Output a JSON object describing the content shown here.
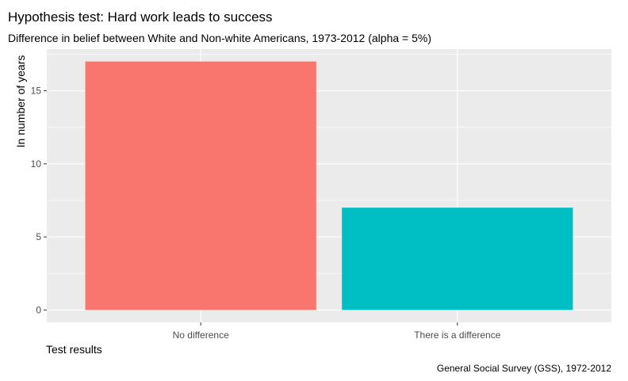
{
  "chart_data": {
    "type": "bar",
    "title": "Hypothesis test: Hard work leads to success",
    "subtitle": "Difference in belief between White and Non-white Americans, 1973-2012 (alpha = 5%)",
    "xlabel": "Test results",
    "ylabel": "In number of years",
    "caption": "General Social Survey (GSS), 1972-2012",
    "categories": [
      "No difference",
      "There is a difference"
    ],
    "values": [
      17,
      7
    ],
    "colors": [
      "#F8766D",
      "#00BFC4"
    ],
    "ylim": [
      -0.85,
      17.85
    ],
    "yticks": [
      0,
      5,
      10,
      15
    ],
    "ytick_labels": [
      "0",
      "5",
      "10",
      "15"
    ],
    "grid": true,
    "legend": "none",
    "panel_background": "#EBEBEB",
    "grid_color": "#FFFFFF"
  }
}
